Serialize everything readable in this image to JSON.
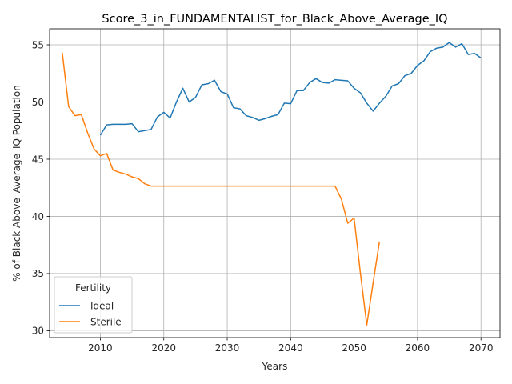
{
  "chart_data": {
    "type": "line",
    "title": "Score_3_in_FUNDAMENTALIST_for_Black_Above_Average_IQ",
    "xlabel": "Years",
    "ylabel": "% of Black Above_Average_IQ Population",
    "xlim": [
      2002,
      2073
    ],
    "ylim": [
      29.4,
      56.4
    ],
    "xticks": [
      2010,
      2020,
      2030,
      2040,
      2050,
      2060,
      2070
    ],
    "yticks": [
      30,
      35,
      40,
      45,
      50,
      55
    ],
    "grid": true,
    "legend": {
      "title": "Fertility",
      "placement": "lower-left"
    },
    "series": [
      {
        "name": "Ideal",
        "color": "#1f77b4",
        "x": [
          2010,
          2011,
          2012,
          2013,
          2014,
          2015,
          2016,
          2017,
          2018,
          2019,
          2020,
          2021,
          2022,
          2023,
          2024,
          2025,
          2026,
          2027,
          2028,
          2029,
          2030,
          2031,
          2032,
          2033,
          2034,
          2035,
          2036,
          2037,
          2038,
          2039,
          2040,
          2041,
          2042,
          2043,
          2044,
          2045,
          2046,
          2047,
          2048,
          2049,
          2050,
          2051,
          2052,
          2053,
          2054,
          2055,
          2056,
          2057,
          2058,
          2059,
          2060,
          2061,
          2062,
          2063,
          2064,
          2065,
          2066,
          2067,
          2068,
          2069,
          2070
        ],
        "y": [
          47.1,
          48.0,
          48.05,
          48.05,
          48.05,
          48.1,
          47.4,
          47.5,
          47.6,
          48.7,
          49.1,
          48.6,
          50.0,
          51.2,
          50.0,
          50.4,
          51.5,
          51.6,
          51.9,
          50.9,
          50.7,
          49.5,
          49.4,
          48.8,
          48.65,
          48.4,
          48.55,
          48.75,
          48.9,
          49.9,
          49.85,
          51.0,
          51.0,
          51.7,
          52.05,
          51.7,
          51.65,
          51.95,
          51.9,
          51.85,
          51.2,
          50.8,
          49.9,
          49.2,
          49.9,
          50.5,
          51.4,
          51.6,
          52.3,
          52.5,
          53.2,
          53.6,
          54.4,
          54.7,
          54.8,
          55.2,
          54.8,
          55.1,
          54.15,
          54.25,
          53.85
        ]
      },
      {
        "name": "Sterile",
        "color": "#ff7f0e",
        "x": [
          2004,
          2005,
          2006,
          2007,
          2008,
          2009,
          2010,
          2011,
          2012,
          2013,
          2014,
          2015,
          2016,
          2017,
          2018,
          2019,
          2020,
          2021,
          2022,
          2023,
          2024,
          2025,
          2026,
          2027,
          2028,
          2029,
          2030,
          2031,
          2032,
          2033,
          2034,
          2035,
          2036,
          2037,
          2038,
          2039,
          2040,
          2041,
          2042,
          2043,
          2044,
          2045,
          2046,
          2047,
          2048,
          2049,
          2050,
          2051,
          2052,
          2053,
          2054
        ],
        "y": [
          54.3,
          49.6,
          48.8,
          48.9,
          47.3,
          45.9,
          45.3,
          45.5,
          44.05,
          43.85,
          43.7,
          43.45,
          43.3,
          42.85,
          42.65,
          42.65,
          42.65,
          42.65,
          42.65,
          42.65,
          42.65,
          42.65,
          42.65,
          42.65,
          42.65,
          42.65,
          42.65,
          42.65,
          42.65,
          42.65,
          42.65,
          42.65,
          42.65,
          42.65,
          42.65,
          42.65,
          42.65,
          42.65,
          42.65,
          42.65,
          42.65,
          42.65,
          42.65,
          42.65,
          41.5,
          39.4,
          39.85,
          35.0,
          30.5,
          34.2,
          37.8
        ]
      }
    ]
  }
}
